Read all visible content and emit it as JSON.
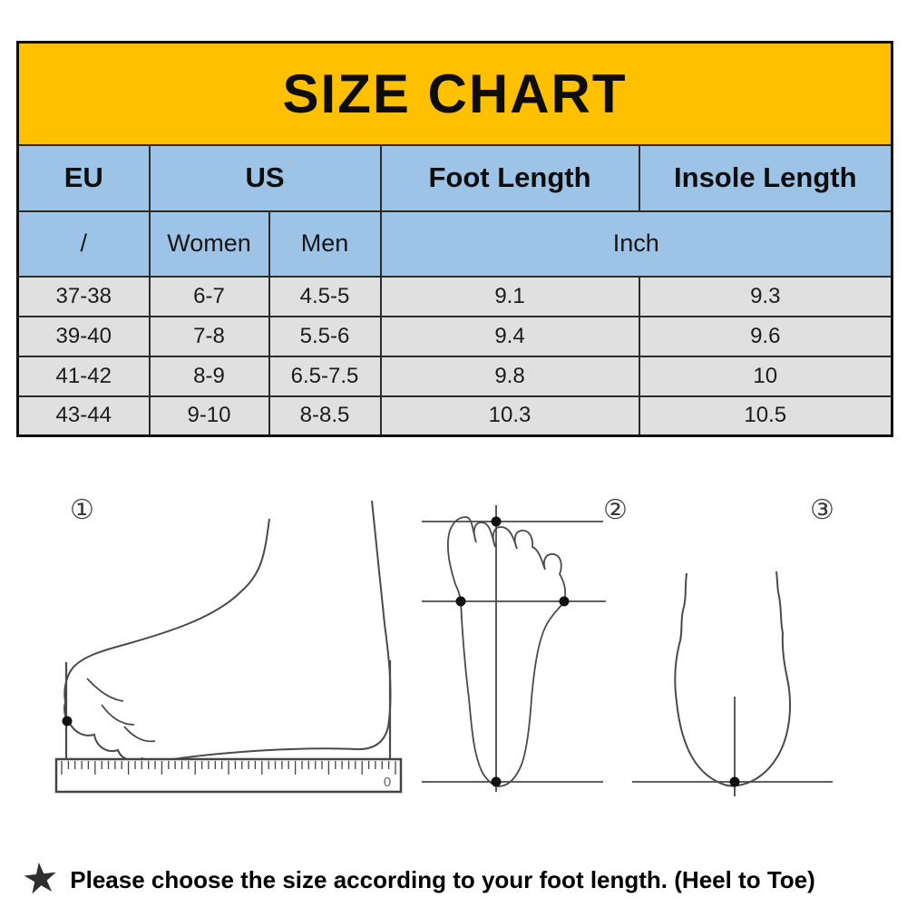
{
  "title": "SIZE CHART",
  "table": {
    "col_headers": {
      "eu": "EU",
      "us": "US",
      "foot_length": "Foot Length",
      "insole_length": "Insole Length"
    },
    "sub_headers": {
      "eu": "/",
      "women": "Women",
      "men": "Men",
      "unit": "Inch"
    },
    "rows": [
      [
        "37-38",
        "6-7",
        "4.5-5",
        "9.1",
        "9.3"
      ],
      [
        "39-40",
        "7-8",
        "5.5-6",
        "9.4",
        "9.6"
      ],
      [
        "41-42",
        "8-9",
        "6.5-7.5",
        "9.8",
        "10"
      ],
      [
        "43-44",
        "9-10",
        "8-8.5",
        "10.3",
        "10.5"
      ]
    ]
  },
  "diagrams": {
    "step1": "①",
    "step2": "②",
    "step3": "③",
    "ruler_zero_label": "0"
  },
  "footnote": {
    "star_icon": "★",
    "text": "Please choose the size according to your foot length. (Heel to Toe)"
  },
  "colors": {
    "title_bg": "#FFC000",
    "header_bg": "#9DC3E6",
    "row_bg": "#E0E0E0",
    "border": "#2b2b2b"
  },
  "chart_data": {
    "type": "table",
    "title": "SIZE CHART",
    "columns": [
      "EU",
      "US Women",
      "US Men",
      "Foot Length (Inch)",
      "Insole Length (Inch)"
    ],
    "rows": [
      [
        "37-38",
        "6-7",
        "4.5-5",
        9.1,
        9.3
      ],
      [
        "39-40",
        "7-8",
        "5.5-6",
        9.4,
        9.6
      ],
      [
        "41-42",
        "8-9",
        "6.5-7.5",
        9.8,
        10
      ],
      [
        "43-44",
        "9-10",
        "8-8.5",
        10.3,
        10.5
      ]
    ],
    "note": "Please choose the size according to your foot length. (Heel to Toe)"
  }
}
